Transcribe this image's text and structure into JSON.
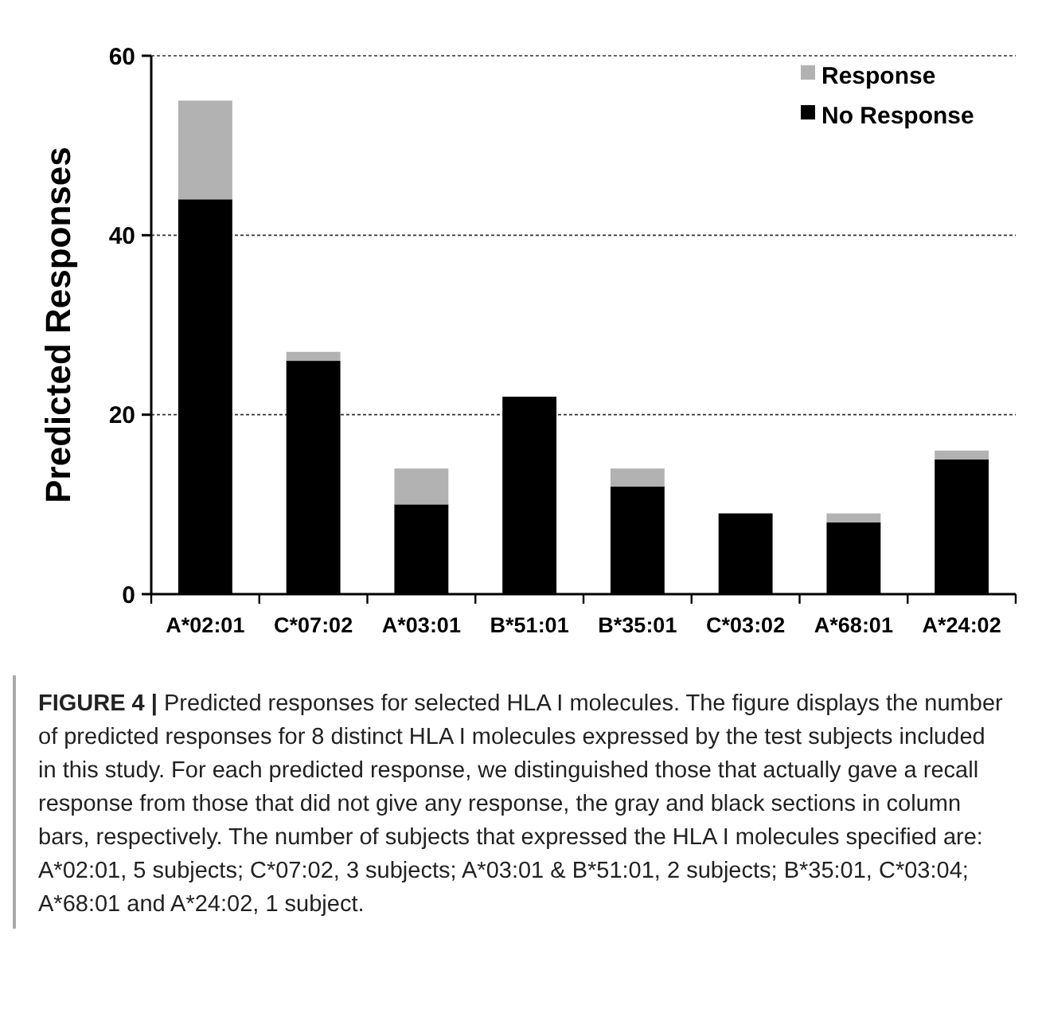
{
  "chart_data": {
    "type": "bar",
    "stacked": true,
    "ylabel": "Predicted Responses",
    "categories": [
      "A*02:01",
      "C*07:02",
      "A*03:01",
      "B*51:01",
      "B*35:01",
      "C*03:02",
      "A*68:01",
      "A*24:02"
    ],
    "series": [
      {
        "name": "No Response",
        "color": "#000000",
        "values": [
          44,
          26,
          10,
          22,
          12,
          9,
          8,
          15
        ]
      },
      {
        "name": "Response",
        "color": "#b2b2b2",
        "values": [
          11,
          1,
          4,
          0,
          2,
          0,
          1,
          1
        ]
      }
    ],
    "ylim": [
      0,
      60
    ],
    "yticks": [
      0,
      20,
      40,
      60
    ],
    "grid": "y",
    "legend": "top right",
    "annotations": [
      "FIGURE 4 |",
      "Predicted responses for selected HLA I molecules. The figure displays the number of predicted responses for 8 distinct HLA I molecules expressed by the test subjects included in this study. For each predicted response, we distinguished those that actually gave a recall response from those that did not give any response, the gray and black sections in column bars, respectively. The number of subjects that expressed the HLA I molecules specified are: A*02:01, 5 subjects; C*07:02, 3 subjects; A*03:01 & B*51:01, 2 subjects; B*35:01, C*03:04; A*68:01 and A*24:02, 1 subject."
    ]
  }
}
